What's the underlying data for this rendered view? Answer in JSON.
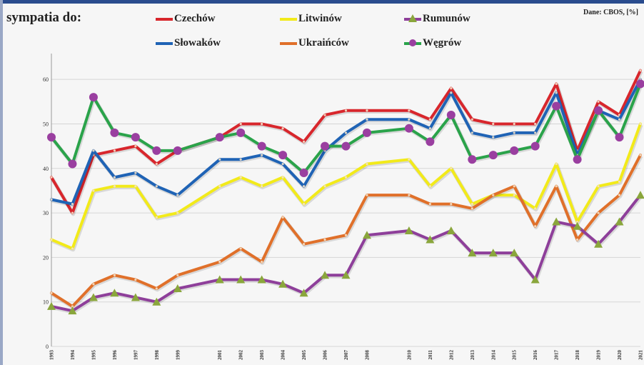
{
  "header": {
    "title": "sympatia do:",
    "source": "Dane: CBOS, [%]"
  },
  "legend": [
    {
      "label": "Czechów",
      "color": "#d8262c",
      "marker": "none"
    },
    {
      "label": "Litwinów",
      "color": "#f2ea1a",
      "marker": "none"
    },
    {
      "label": "Rumunów",
      "color": "#8e3f9a",
      "marker": "triangle"
    },
    {
      "label": "Słowaków",
      "color": "#1f63b5",
      "marker": "none"
    },
    {
      "label": "Ukraińców",
      "color": "#e0702a",
      "marker": "none"
    },
    {
      "label": "Węgrów",
      "color": "#2aa34a",
      "marker": "circle"
    }
  ],
  "chart_data": {
    "type": "line",
    "title": "sympatia do:",
    "ylim": [
      0,
      65
    ],
    "y_ticks": [
      0,
      10,
      20,
      30,
      40,
      50,
      60
    ],
    "grid": true,
    "legend_position": "top",
    "x": [
      "1993",
      "1994",
      "1995",
      "1996",
      "1997",
      "1998",
      "1999",
      "2001",
      "2002",
      "2003",
      "2004",
      "2005",
      "2006",
      "2007",
      "2008",
      "2010",
      "2011",
      "2012",
      "2013",
      "2014",
      "2015",
      "2016",
      "2017",
      "2018",
      "2019",
      "2020",
      "2021"
    ],
    "series": [
      {
        "name": "Czechów",
        "color": "#d8262c",
        "marker": "none",
        "values": [
          38,
          30,
          43,
          44,
          45,
          41,
          44,
          47,
          50,
          50,
          49,
          46,
          52,
          53,
          53,
          53,
          51,
          58,
          51,
          50,
          50,
          50,
          59,
          44,
          55,
          52,
          62
        ]
      },
      {
        "name": "Słowaków",
        "color": "#1f63b5",
        "marker": "none",
        "values": [
          33,
          32,
          44,
          38,
          39,
          36,
          34,
          42,
          42,
          43,
          41,
          36,
          44,
          48,
          51,
          51,
          49,
          57,
          48,
          47,
          48,
          48,
          57,
          43,
          53,
          51,
          60
        ]
      },
      {
        "name": "Węgrów",
        "color": "#2aa34a",
        "marker": "circle",
        "marker_color": "#9a3fa0",
        "values": [
          47,
          41,
          56,
          48,
          47,
          44,
          44,
          47,
          48,
          45,
          43,
          39,
          45,
          45,
          48,
          49,
          46,
          52,
          42,
          43,
          44,
          45,
          54,
          42,
          53,
          47,
          59
        ]
      },
      {
        "name": "Litwinów",
        "color": "#f2ea1a",
        "marker": "none",
        "values": [
          24,
          22,
          35,
          36,
          36,
          29,
          30,
          36,
          38,
          36,
          38,
          32,
          36,
          38,
          41,
          42,
          36,
          40,
          32,
          34,
          34,
          31,
          41,
          28,
          36,
          37,
          50
        ]
      },
      {
        "name": "Ukraińców",
        "color": "#e0702a",
        "marker": "none",
        "values": [
          12,
          9,
          14,
          16,
          15,
          13,
          16,
          19,
          22,
          19,
          29,
          23,
          24,
          25,
          34,
          34,
          32,
          32,
          31,
          34,
          36,
          27,
          36,
          24,
          30,
          34,
          43
        ]
      },
      {
        "name": "Rumunów",
        "color": "#8e3f9a",
        "marker": "triangle",
        "marker_color": "#8aa63c",
        "values": [
          9,
          8,
          11,
          12,
          11,
          10,
          13,
          15,
          15,
          15,
          14,
          12,
          16,
          16,
          25,
          26,
          24,
          26,
          21,
          21,
          21,
          15,
          28,
          27,
          23,
          28,
          34
        ]
      }
    ]
  }
}
